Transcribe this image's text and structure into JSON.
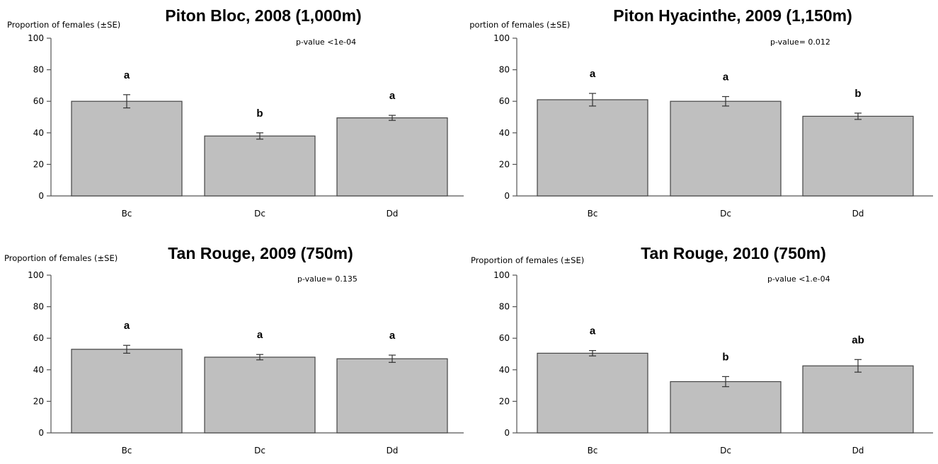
{
  "chart_data": [
    {
      "type": "bar",
      "title": "Piton Bloc, 2008 (1,000m)",
      "ylabel": "Proportion of females (±SE)",
      "pvalue": "p-value <1e-04",
      "ylim": [
        0,
        100
      ],
      "yticks": [
        "0",
        "20",
        "40",
        "60",
        "80",
        "100"
      ],
      "categories": [
        "Bc",
        "Dc",
        "Dd"
      ],
      "values": [
        60,
        38,
        49.5
      ],
      "se": [
        4.2,
        2,
        1.6
      ],
      "letters": [
        "a",
        "b",
        "a"
      ]
    },
    {
      "type": "bar",
      "title": "Piton Hyacinthe, 2009 (1,150m)",
      "ylabel": "Proportion of females (±SE)",
      "pvalue": "p-value= 0.012",
      "ylim": [
        0,
        100
      ],
      "yticks": [
        "0",
        "20",
        "40",
        "60",
        "80",
        "100"
      ],
      "categories": [
        "Bc",
        "Dc",
        "Dd"
      ],
      "values": [
        61,
        60,
        50.5
      ],
      "se": [
        4,
        3,
        2
      ],
      "letters": [
        "a",
        "a",
        "b"
      ]
    },
    {
      "type": "bar",
      "title": "Tan Rouge, 2009 (750m)",
      "ylabel": "Proportion of females (±SE)",
      "pvalue": "p-value= 0.135",
      "ylim": [
        0,
        100
      ],
      "yticks": [
        "0",
        "20",
        "40",
        "60",
        "80",
        "100"
      ],
      "categories": [
        "Bc",
        "Dc",
        "Dd"
      ],
      "values": [
        53,
        48,
        47
      ],
      "se": [
        2.5,
        1.7,
        2.3
      ],
      "letters": [
        "a",
        "a",
        "a"
      ]
    },
    {
      "type": "bar",
      "title": "Tan Rouge, 2010 (750m)",
      "ylabel": "Proportion of females (±SE)",
      "pvalue": "p-value <1.e-04",
      "ylim": [
        0,
        100
      ],
      "yticks": [
        "0",
        "20",
        "40",
        "60",
        "80",
        "100"
      ],
      "categories": [
        "Bc",
        "Dc",
        "Dd"
      ],
      "values": [
        50.5,
        32.5,
        42.5
      ],
      "se": [
        1.7,
        3.2,
        4
      ],
      "letters": [
        "a",
        "b",
        "ab"
      ]
    }
  ]
}
